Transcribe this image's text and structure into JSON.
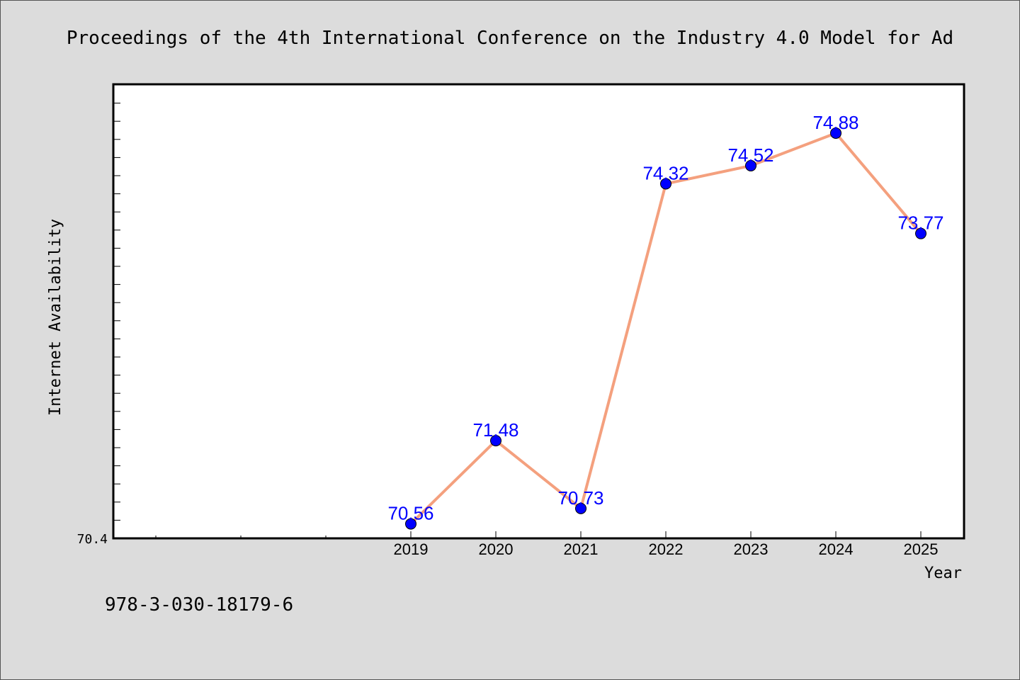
{
  "chart_data": {
    "type": "line",
    "title": "Proceedings of the 4th International Conference on the Industry 4.0 Model for Ad",
    "xlabel": "Year",
    "ylabel": "Internet Availability",
    "categories": [
      "2019",
      "2020",
      "2021",
      "2022",
      "2023",
      "2024",
      "2025"
    ],
    "series": [
      {
        "values": [
          70.56,
          71.48,
          70.73,
          74.32,
          74.52,
          74.88,
          73.77
        ],
        "data_labels": [
          "70.56",
          "71.48",
          "70.73",
          "74.32",
          "74.52",
          "74.88",
          "73.77"
        ]
      }
    ],
    "x_tick_labels": [
      "2019",
      "2020",
      "2021",
      "2022",
      "2023",
      "2024",
      "2025"
    ],
    "y_tick_labels": [
      "70.4"
    ],
    "ylim": [
      70.4,
      75.42
    ],
    "grid": false,
    "line_color": "#f4a07e",
    "marker_color": "#0000ff",
    "label_color": "#0000ff"
  },
  "footer": {
    "isbn": "978-3-030-18179-6"
  }
}
